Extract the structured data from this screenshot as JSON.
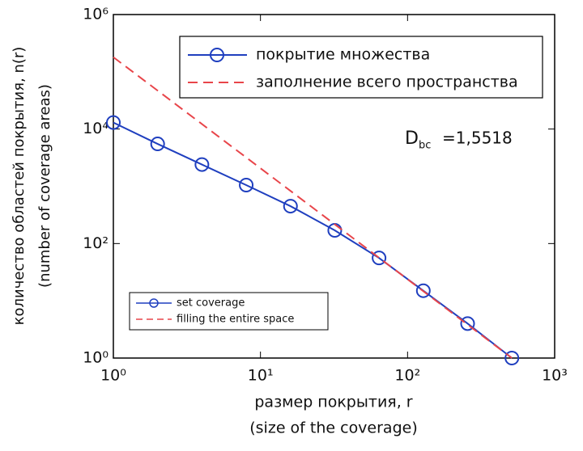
{
  "chart_data": {
    "type": "line",
    "xscale": "log",
    "yscale": "log",
    "xlabel": [
      "размер покрытия, r",
      "(size of the coverage)"
    ],
    "ylabel": [
      "количество областей покрытия, n(r)",
      "(number of coverage areas)"
    ],
    "xlim": [
      1,
      1000
    ],
    "ylim": [
      1,
      1000000
    ],
    "xticks": [
      {
        "value": 1,
        "label": "10⁰"
      },
      {
        "value": 10,
        "label": "10¹"
      },
      {
        "value": 100,
        "label": "10²"
      },
      {
        "value": 1000,
        "label": "10³"
      }
    ],
    "yticks": [
      {
        "value": 1,
        "label": "10⁰"
      },
      {
        "value": 100,
        "label": "10²"
      },
      {
        "value": 10000,
        "label": "10⁴"
      },
      {
        "value": 1000000,
        "label": "10⁶"
      }
    ],
    "legend": "upper right",
    "series": [
      {
        "name": "покрытие множества",
        "color": "#1f3fbf",
        "style": "solid",
        "marker": "circle",
        "x": [
          1,
          2,
          4,
          8,
          16,
          32,
          64,
          128,
          256,
          512
        ],
        "values": [
          13000,
          5500,
          2400,
          1050,
          450,
          170,
          56,
          15,
          4,
          1
        ]
      },
      {
        "name": "заполнение всего пространства",
        "color": "#e8454a",
        "style": "dashed",
        "marker": "none",
        "x": [
          1,
          512
        ],
        "values": [
          180000,
          1
        ]
      }
    ],
    "legend2_labels": [
      "set coverage",
      "filling the entire space"
    ],
    "annotation": {
      "main": "D",
      "sub": "bc",
      "rest": "=1,5518"
    }
  }
}
